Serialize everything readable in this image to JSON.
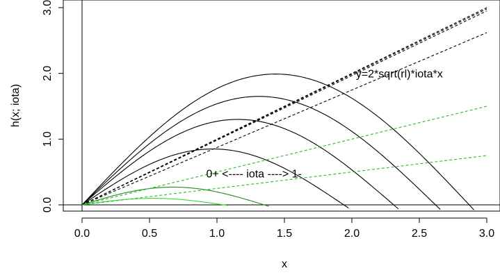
{
  "chart_data": {
    "type": "line",
    "xlabel": "x",
    "ylabel": "h(x; iota)",
    "xlim": [
      -0.12,
      3.08
    ],
    "ylim": [
      -0.1,
      3.1
    ],
    "x_ticks": [
      {
        "value": 0.0,
        "label": "0.0"
      },
      {
        "value": 0.5,
        "label": "0.5"
      },
      {
        "value": 1.0,
        "label": "1.0"
      },
      {
        "value": 1.5,
        "label": "1.5"
      },
      {
        "value": 2.0,
        "label": "2.0"
      },
      {
        "value": 2.5,
        "label": "2.5"
      },
      {
        "value": 3.0,
        "label": "3.0"
      }
    ],
    "y_ticks": [
      {
        "value": 0.0,
        "label": "0.0"
      },
      {
        "value": 1.0,
        "label": "1.0"
      },
      {
        "value": 2.0,
        "label": "2.0"
      },
      {
        "value": 3.0,
        "label": "3.0"
      }
    ],
    "reference_lines": [
      {
        "kind": "vertical",
        "x": 0.0,
        "color": "#000000"
      },
      {
        "kind": "horizontal",
        "y": 0.0,
        "color": "#000000"
      }
    ],
    "series": [
      {
        "color": "#000000",
        "dash": "solid",
        "peak_x": 1.43,
        "peak_y": 1.99,
        "end_x": 2.87
      },
      {
        "color": "#000000",
        "dash": "solid",
        "peak_x": 1.31,
        "peak_y": 1.65,
        "end_x": 2.62
      },
      {
        "color": "#000000",
        "dash": "solid",
        "peak_x": 1.16,
        "peak_y": 1.3,
        "end_x": 2.31
      },
      {
        "color": "#000000",
        "dash": "solid",
        "peak_x": 0.97,
        "peak_y": 0.85,
        "end_x": 1.94
      },
      {
        "color": "#1a8a1a",
        "dash": "solid",
        "peak_x": 0.68,
        "peak_y": 0.27,
        "end_x": 1.35
      },
      {
        "color": "#33dd33",
        "dash": "solid",
        "peak_x": 0.52,
        "peak_y": 0.1,
        "end_x": 1.05
      },
      {
        "color": "#000000",
        "dash": "dashed",
        "x": [
          0,
          3.0
        ],
        "y": [
          0,
          3.0
        ]
      },
      {
        "color": "#000000",
        "dash": "dashed",
        "x": [
          0,
          3.0
        ],
        "y": [
          0,
          2.98
        ]
      },
      {
        "color": "#000000",
        "dash": "dashed",
        "x": [
          0,
          3.0
        ],
        "y": [
          0,
          2.95
        ]
      },
      {
        "color": "#000000",
        "dash": "dashed",
        "x": [
          0,
          3.0
        ],
        "y": [
          0,
          2.62
        ]
      },
      {
        "color": "#2db82d",
        "dash": "dashed",
        "x": [
          0,
          3.0
        ],
        "y": [
          0,
          1.5
        ]
      },
      {
        "color": "#2db82d",
        "dash": "dashed",
        "x": [
          0,
          3.0
        ],
        "y": [
          0,
          0.75
        ]
      }
    ],
    "annotations": [
      {
        "text": "y=2*sqrt(rl)*iota*x",
        "x": 2.03,
        "y": 1.99
      },
      {
        "text": "0+ <---- iota ----> 1-",
        "x": 0.92,
        "y": 0.47
      }
    ]
  }
}
